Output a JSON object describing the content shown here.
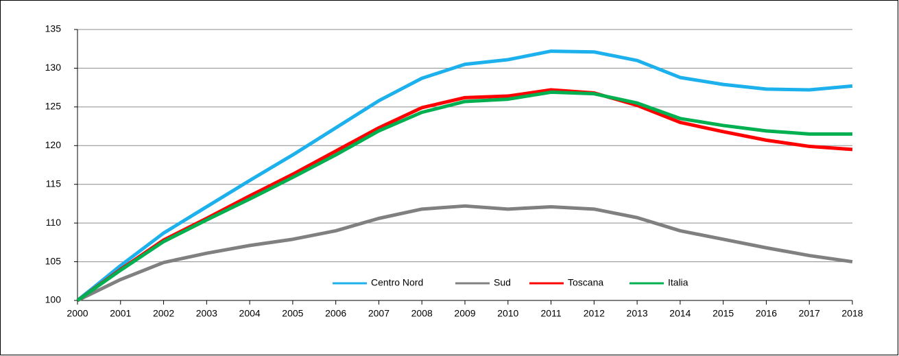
{
  "chart_data": {
    "type": "line",
    "categories": [
      "2000",
      "2001",
      "2002",
      "2003",
      "2004",
      "2005",
      "2006",
      "2007",
      "2008",
      "2009",
      "2010",
      "2011",
      "2012",
      "2013",
      "2014",
      "2015",
      "2016",
      "2017",
      "2018"
    ],
    "series": [
      {
        "name": "Centro Nord",
        "color": "#1cb0ec",
        "values": [
          100,
          104.5,
          108.7,
          112.1,
          115.5,
          118.8,
          122.3,
          125.8,
          128.7,
          130.5,
          131.1,
          132.2,
          132.1,
          131.0,
          128.8,
          127.9,
          127.3,
          127.2,
          127.7
        ]
      },
      {
        "name": "Sud",
        "color": "#808080",
        "values": [
          100,
          102.7,
          104.9,
          106.1,
          107.1,
          107.9,
          109.0,
          110.6,
          111.8,
          112.2,
          111.8,
          112.1,
          111.8,
          110.7,
          109.0,
          107.9,
          106.8,
          105.8,
          105.0
        ]
      },
      {
        "name": "Toscana",
        "color": "#ff0000",
        "values": [
          100,
          104.0,
          107.8,
          110.6,
          113.5,
          116.3,
          119.3,
          122.3,
          124.9,
          126.2,
          126.4,
          127.2,
          126.8,
          125.2,
          123.0,
          121.8,
          120.7,
          119.9,
          119.5
        ]
      },
      {
        "name": "Italia",
        "color": "#00b050",
        "values": [
          100,
          103.9,
          107.6,
          110.4,
          113.1,
          115.9,
          118.8,
          121.9,
          124.3,
          125.7,
          126.0,
          126.9,
          126.7,
          125.5,
          123.5,
          122.6,
          121.9,
          121.5,
          121.5
        ]
      }
    ],
    "ylim": [
      100,
      135
    ],
    "yticks": [
      100,
      105,
      110,
      115,
      120,
      125,
      130,
      135
    ],
    "grid": true,
    "legend": "bottom"
  }
}
